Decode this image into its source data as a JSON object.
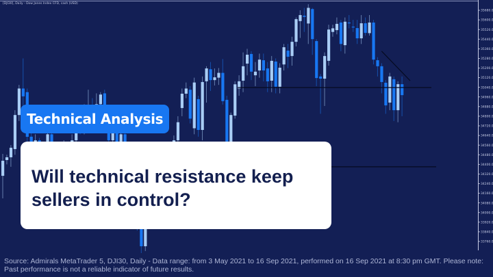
{
  "chart_header": "[DJI30], Daily - Dow Jones Index CFD, cash (USD)",
  "badge": {
    "label": "Technical Analysis"
  },
  "headline": "Will technical resistance keep sellers in control?",
  "footer": "Source: Admirals MetaTrader 5, DJI30, Daily - Data range: from 3 May 2021 to 16 Sep 2021, performed on 16 Sep 2021 at 8:30 pm GMT. Please note: Past performance is not a reliable indicator of future results.",
  "colors": {
    "background": "#131f55",
    "bull": "#a9cdf5",
    "bear": "#1877f2",
    "badge": "#1877f2",
    "headline": "#131f4f"
  },
  "chart_data": {
    "type": "candlestick",
    "ylim": [
      33760,
      35680
    ],
    "y_ticks": [
      35680,
      35600,
      35520,
      35440,
      35360,
      35280,
      35200,
      35120,
      35040,
      34960,
      34880,
      34800,
      34720,
      34640,
      34560,
      34480,
      34400,
      34320,
      34240,
      34160,
      34080,
      34000,
      33920,
      33840,
      33760
    ],
    "ohlc": [
      [
        34305,
        34487,
        34118,
        34430
      ],
      [
        34436,
        34480,
        34400,
        34459
      ],
      [
        34459,
        34560,
        34380,
        34538
      ],
      [
        34527,
        34850,
        34480,
        34810
      ],
      [
        34810,
        35060,
        34760,
        35030
      ],
      [
        35030,
        35280,
        34856,
        34965
      ],
      [
        35000,
        35030,
        34570,
        34629
      ],
      [
        34630,
        34660,
        34400,
        34460
      ],
      [
        34460,
        34650,
        34420,
        34600
      ],
      [
        34600,
        34620,
        34330,
        34380
      ],
      [
        34380,
        34560,
        34340,
        34520
      ],
      [
        34520,
        34700,
        34480,
        34650
      ],
      [
        34650,
        34680,
        34400,
        34450
      ],
      [
        34450,
        34480,
        34200,
        34250
      ],
      [
        34250,
        34460,
        34220,
        34420
      ],
      [
        34420,
        34600,
        34380,
        34560
      ],
      [
        34560,
        34590,
        34350,
        34400
      ],
      [
        34400,
        34650,
        34350,
        34600
      ],
      [
        34600,
        34820,
        34560,
        34780
      ],
      [
        34780,
        34830,
        34650,
        34700
      ],
      [
        34700,
        34900,
        34650,
        34820
      ],
      [
        34820,
        35020,
        34780,
        34880
      ],
      [
        34880,
        34950,
        34700,
        34760
      ],
      [
        34760,
        34990,
        34720,
        34900
      ],
      [
        34900,
        35000,
        34830,
        34980
      ],
      [
        34990,
        35020,
        34740,
        34780
      ],
      [
        34780,
        34820,
        34550,
        34600
      ],
      [
        34600,
        34760,
        34560,
        34700
      ],
      [
        34700,
        34740,
        34450,
        34500
      ],
      [
        34500,
        34700,
        34470,
        34650
      ],
      [
        34650,
        34680,
        34350,
        34400
      ],
      [
        34400,
        34430,
        34150,
        34200
      ],
      [
        34200,
        34350,
        34100,
        34300
      ],
      [
        34300,
        34330,
        33850,
        33900
      ],
      [
        33900,
        33950,
        33650,
        33720
      ],
      [
        33720,
        34000,
        33680,
        33950
      ],
      [
        33950,
        34200,
        33900,
        34150
      ],
      [
        34150,
        34350,
        34100,
        34300
      ],
      [
        34300,
        34350,
        34150,
        34200
      ],
      [
        34200,
        34450,
        34180,
        34400
      ],
      [
        34400,
        34560,
        34380,
        34520
      ],
      [
        34520,
        34560,
        34380,
        34400
      ],
      [
        34400,
        34640,
        34380,
        34600
      ],
      [
        34600,
        34800,
        34560,
        34750
      ],
      [
        34868,
        35030,
        34800,
        34987
      ],
      [
        34987,
        35080,
        34950,
        35030
      ],
      [
        35020,
        35050,
        34740,
        34780
      ],
      [
        34700,
        35120,
        34650,
        35080
      ],
      [
        34942,
        34970,
        34630,
        34686
      ],
      [
        34686,
        35130,
        34600,
        35084
      ],
      [
        35090,
        35215,
        34913,
        35197
      ],
      [
        35190,
        35250,
        35010,
        35100
      ],
      [
        35100,
        35197,
        35055,
        35123
      ],
      [
        35120,
        35200,
        35060,
        35160
      ],
      [
        35160,
        35275,
        34897,
        34925
      ],
      [
        34936,
        34970,
        34400,
        34590
      ],
      [
        34572,
        34830,
        34430,
        34810
      ],
      [
        34805,
        35090,
        34780,
        35065
      ],
      [
        35030,
        35140,
        34970,
        35090
      ],
      [
        35095,
        35330,
        35000,
        35215
      ],
      [
        35237,
        35360,
        35140,
        35311
      ],
      [
        35317,
        35340,
        35100,
        35170
      ],
      [
        35140,
        35250,
        35050,
        35170
      ],
      [
        35180,
        35320,
        35120,
        35270
      ],
      [
        35265,
        35320,
        35090,
        35180
      ],
      [
        35197,
        35250,
        35000,
        35090
      ],
      [
        35095,
        35300,
        35000,
        35260
      ],
      [
        35254,
        35280,
        34990,
        35045
      ],
      [
        35045,
        35240,
        34990,
        35203
      ],
      [
        35230,
        35400,
        35180,
        35373
      ],
      [
        35345,
        35400,
        35200,
        35294
      ],
      [
        35300,
        35460,
        35220,
        35418
      ],
      [
        35418,
        35620,
        35380,
        35606
      ],
      [
        35590,
        35680,
        35450,
        35640
      ],
      [
        35635,
        35700,
        35500,
        35625
      ],
      [
        35570,
        35730,
        35400,
        35700
      ],
      [
        35690,
        35700,
        35310,
        35440
      ],
      [
        35424,
        35440,
        35050,
        35117
      ],
      [
        35130,
        35150,
        34820,
        35112
      ],
      [
        35112,
        35330,
        34885,
        35300
      ],
      [
        35260,
        35560,
        35220,
        35520
      ],
      [
        35500,
        35560,
        35460,
        35530
      ],
      [
        35515,
        35620,
        35480,
        35567
      ],
      [
        35578,
        35600,
        35340,
        35400
      ],
      [
        35390,
        35620,
        35320,
        35585
      ],
      [
        35578,
        35640,
        35530,
        35572
      ],
      [
        35544,
        35600,
        35500,
        35538
      ],
      [
        35532,
        35600,
        35400,
        35447
      ],
      [
        35447,
        35640,
        35400,
        35572
      ],
      [
        35572,
        35620,
        35470,
        35492
      ],
      [
        35490,
        35640,
        35470,
        35578
      ],
      [
        35578,
        35600,
        35230,
        35270
      ],
      [
        35265,
        35290,
        35130,
        35215
      ],
      [
        35215,
        35240,
        34990,
        35084
      ],
      [
        35078,
        35100,
        34820,
        34890
      ],
      [
        34913,
        35160,
        34850,
        35130
      ],
      [
        35107,
        35130,
        34760,
        34850
      ],
      [
        34850,
        35090,
        34750,
        35066
      ],
      [
        35066,
        35130,
        34800,
        34975
      ]
    ],
    "resistance_level": 35038,
    "support_level": 34380,
    "trendline": {
      "from": [
        93,
        35340
      ],
      "to": [
        100,
        35095
      ]
    }
  }
}
